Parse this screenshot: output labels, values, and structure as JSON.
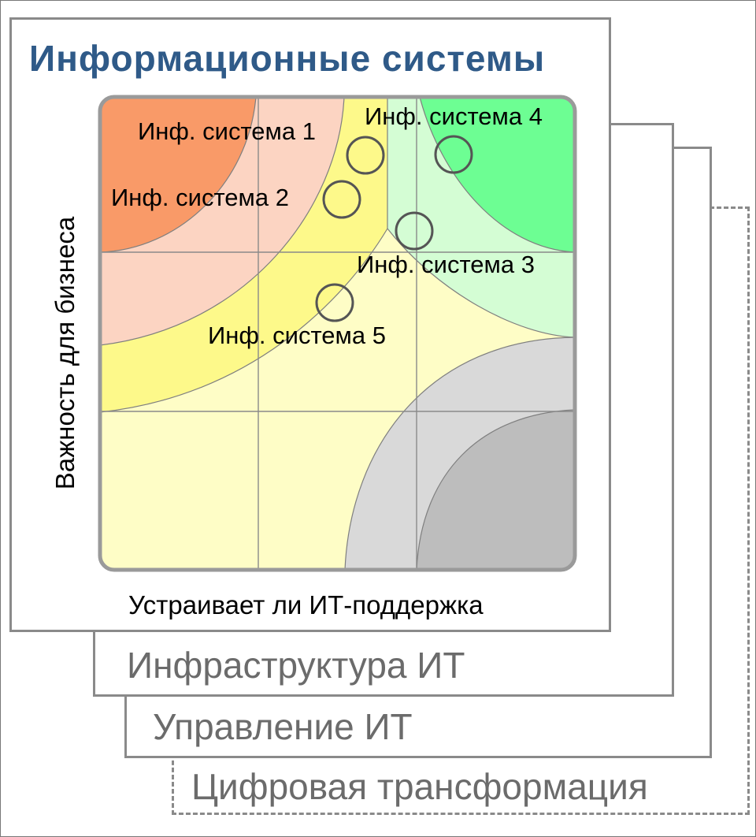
{
  "layers": {
    "information_systems": "Информационные системы",
    "infrastructure": "Инфраструктура ИТ",
    "management": "Управление ИТ",
    "digital_transformation": "Цифровая трансформация"
  },
  "matrix": {
    "y_axis_label": "Важность  для бизнеса",
    "x_axis_label": "Устраивает ли ИТ-поддержка",
    "systems": [
      {
        "label": "Инф. система 1"
      },
      {
        "label": "Инф. система 2"
      },
      {
        "label": "Инф. система 3"
      },
      {
        "label": "Инф. система 4"
      },
      {
        "label": "Инф. система 5"
      }
    ]
  },
  "colors": {
    "title": "#2f5a88",
    "frame": "#8a8a8a",
    "orange_strong": "#f99a68",
    "orange_light": "#fcd4c2",
    "yellow_strong": "#fdf98a",
    "yellow_light": "#fefdc6",
    "green_strong": "#6dfe93",
    "green_light": "#d4fdd4",
    "gray_light": "#d9d9d9",
    "gray_dark": "#bdbdbd"
  }
}
